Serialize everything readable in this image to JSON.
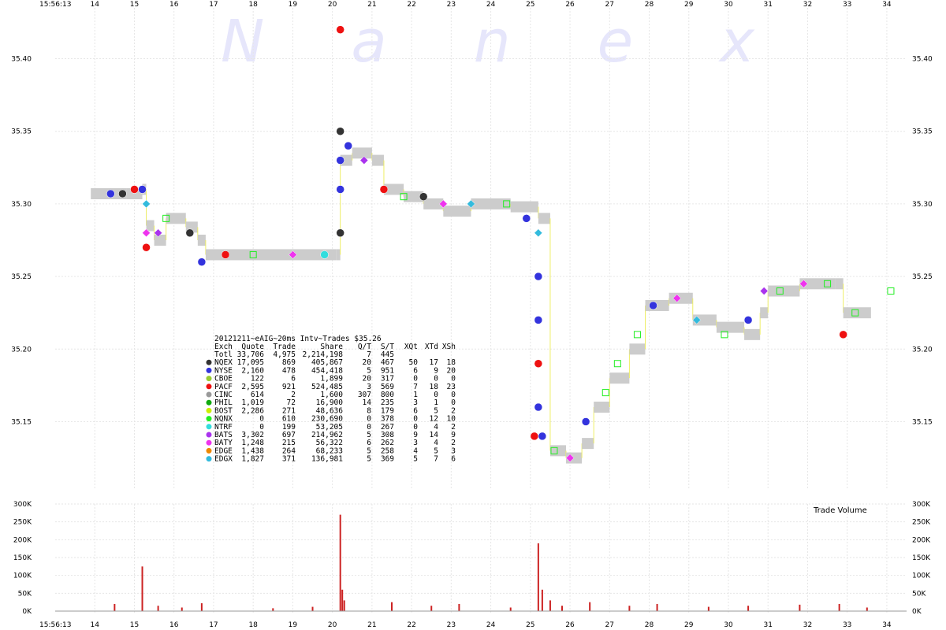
{
  "watermark": "Nanex",
  "time_label": "15:56:13",
  "chart_data": {
    "type": "scatter",
    "x_ticks": [
      "14",
      "15",
      "16",
      "17",
      "18",
      "19",
      "20",
      "21",
      "22",
      "23",
      "24",
      "25",
      "26",
      "27",
      "28",
      "29",
      "30",
      "31",
      "32",
      "33",
      "34"
    ],
    "y_ticks": [
      "35.40",
      "35.35",
      "35.30",
      "35.25",
      "35.20",
      "35.15"
    ],
    "ylim": [
      35.115,
      35.435
    ],
    "xlim": [
      13.0,
      34.3
    ],
    "colors": {
      "NQEX": "#333333",
      "NYSE": "#3333dd",
      "CBOE": "#99cc33",
      "PACF": "#ee1111",
      "CINC": "#999999",
      "PHIL": "#11aa11",
      "BOST": "#ccee00",
      "NQNX": "#22ee22",
      "NTRF": "#33dddd",
      "BATS": "#aa33ee",
      "BATY": "#ee33ee",
      "EDGE": "#ee8800",
      "EDGX": "#33bbdd"
    },
    "nbbo": [
      [
        13.9,
        35.307
      ],
      [
        14.8,
        35.307
      ],
      [
        15.2,
        35.31
      ],
      [
        15.3,
        35.285
      ],
      [
        15.5,
        35.275
      ],
      [
        15.8,
        35.29
      ],
      [
        16.3,
        35.284
      ],
      [
        16.6,
        35.275
      ],
      [
        16.8,
        35.265
      ],
      [
        20.1,
        35.265
      ],
      [
        20.2,
        35.33
      ],
      [
        20.5,
        35.335
      ],
      [
        21.0,
        35.33
      ],
      [
        21.3,
        35.31
      ],
      [
        21.8,
        35.305
      ],
      [
        22.3,
        35.3
      ],
      [
        22.8,
        35.295
      ],
      [
        23.5,
        35.3
      ],
      [
        24.5,
        35.298
      ],
      [
        25.2,
        35.29
      ],
      [
        25.5,
        35.13
      ],
      [
        25.9,
        35.125
      ],
      [
        26.3,
        35.135
      ],
      [
        26.6,
        35.16
      ],
      [
        27.0,
        35.18
      ],
      [
        27.5,
        35.2
      ],
      [
        27.9,
        35.23
      ],
      [
        28.5,
        35.235
      ],
      [
        29.1,
        35.22
      ],
      [
        29.7,
        35.215
      ],
      [
        30.4,
        35.21
      ],
      [
        30.8,
        35.225
      ],
      [
        31.0,
        35.24
      ],
      [
        31.8,
        35.245
      ],
      [
        32.7,
        35.245
      ],
      [
        32.9,
        35.225
      ],
      [
        33.6,
        35.225
      ]
    ],
    "trades": [
      {
        "x": 14.4,
        "y": 35.307,
        "ex": "NYSE"
      },
      {
        "x": 14.7,
        "y": 35.307,
        "ex": "NQEX"
      },
      {
        "x": 15.0,
        "y": 35.31,
        "ex": "PACF"
      },
      {
        "x": 15.2,
        "y": 35.31,
        "ex": "NYSE"
      },
      {
        "x": 15.3,
        "y": 35.3,
        "ex": "EDGX"
      },
      {
        "x": 15.3,
        "y": 35.28,
        "ex": "BATY"
      },
      {
        "x": 15.3,
        "y": 35.27,
        "ex": "PACF"
      },
      {
        "x": 15.6,
        "y": 35.28,
        "ex": "BATS"
      },
      {
        "x": 15.8,
        "y": 35.29,
        "ex": "NQNX"
      },
      {
        "x": 16.4,
        "y": 35.28,
        "ex": "NQEX"
      },
      {
        "x": 16.7,
        "y": 35.26,
        "ex": "NYSE"
      },
      {
        "x": 17.3,
        "y": 35.265,
        "ex": "PACF"
      },
      {
        "x": 18.0,
        "y": 35.265,
        "ex": "NQNX"
      },
      {
        "x": 19.0,
        "y": 35.265,
        "ex": "BATY"
      },
      {
        "x": 19.8,
        "y": 35.265,
        "ex": "NTRF"
      },
      {
        "x": 20.2,
        "y": 35.42,
        "ex": "PACF"
      },
      {
        "x": 20.2,
        "y": 35.35,
        "ex": "NQEX"
      },
      {
        "x": 20.2,
        "y": 35.33,
        "ex": "NYSE"
      },
      {
        "x": 20.2,
        "y": 35.31,
        "ex": "NYSE"
      },
      {
        "x": 20.2,
        "y": 35.28,
        "ex": "NQEX"
      },
      {
        "x": 20.4,
        "y": 35.34,
        "ex": "NYSE"
      },
      {
        "x": 20.8,
        "y": 35.33,
        "ex": "BATS"
      },
      {
        "x": 21.3,
        "y": 35.31,
        "ex": "PACF"
      },
      {
        "x": 21.8,
        "y": 35.305,
        "ex": "NQNX"
      },
      {
        "x": 22.3,
        "y": 35.305,
        "ex": "NQEX"
      },
      {
        "x": 22.8,
        "y": 35.3,
        "ex": "BATY"
      },
      {
        "x": 23.5,
        "y": 35.3,
        "ex": "EDGX"
      },
      {
        "x": 24.4,
        "y": 35.3,
        "ex": "NQNX"
      },
      {
        "x": 24.9,
        "y": 35.29,
        "ex": "NYSE"
      },
      {
        "x": 25.2,
        "y": 35.28,
        "ex": "EDGX"
      },
      {
        "x": 25.2,
        "y": 35.25,
        "ex": "NYSE"
      },
      {
        "x": 25.2,
        "y": 35.22,
        "ex": "NYSE"
      },
      {
        "x": 25.2,
        "y": 35.19,
        "ex": "PACF"
      },
      {
        "x": 25.2,
        "y": 35.16,
        "ex": "NYSE"
      },
      {
        "x": 25.1,
        "y": 35.14,
        "ex": "PACF"
      },
      {
        "x": 25.3,
        "y": 35.14,
        "ex": "NYSE"
      },
      {
        "x": 25.6,
        "y": 35.13,
        "ex": "NQNX"
      },
      {
        "x": 26.0,
        "y": 35.125,
        "ex": "BATY"
      },
      {
        "x": 26.4,
        "y": 35.15,
        "ex": "NYSE"
      },
      {
        "x": 26.9,
        "y": 35.17,
        "ex": "NQNX"
      },
      {
        "x": 27.2,
        "y": 35.19,
        "ex": "NQNX"
      },
      {
        "x": 27.7,
        "y": 35.21,
        "ex": "NQNX"
      },
      {
        "x": 28.1,
        "y": 35.23,
        "ex": "NYSE"
      },
      {
        "x": 28.7,
        "y": 35.235,
        "ex": "BATY"
      },
      {
        "x": 29.2,
        "y": 35.22,
        "ex": "EDGX"
      },
      {
        "x": 29.9,
        "y": 35.21,
        "ex": "NQNX"
      },
      {
        "x": 30.5,
        "y": 35.22,
        "ex": "NYSE"
      },
      {
        "x": 30.9,
        "y": 35.24,
        "ex": "BATS"
      },
      {
        "x": 31.3,
        "y": 35.24,
        "ex": "NQNX"
      },
      {
        "x": 31.9,
        "y": 35.245,
        "ex": "BATY"
      },
      {
        "x": 32.5,
        "y": 35.245,
        "ex": "NQNX"
      },
      {
        "x": 32.9,
        "y": 35.21,
        "ex": "PACF"
      },
      {
        "x": 33.2,
        "y": 35.225,
        "ex": "NQNX"
      },
      {
        "x": 34.1,
        "y": 35.24,
        "ex": "NQNX"
      }
    ],
    "volume": {
      "title": "Trade Volume",
      "y_ticks": [
        "300K",
        "250K",
        "200K",
        "150K",
        "100K",
        "50K",
        "0K"
      ],
      "ylim": [
        0,
        300000
      ],
      "bars": [
        [
          14.5,
          20000
        ],
        [
          15.2,
          125000
        ],
        [
          15.6,
          15000
        ],
        [
          16.2,
          10000
        ],
        [
          16.7,
          22000
        ],
        [
          18.5,
          8000
        ],
        [
          19.5,
          12000
        ],
        [
          20.2,
          270000
        ],
        [
          20.25,
          60000
        ],
        [
          20.3,
          30000
        ],
        [
          21.5,
          25000
        ],
        [
          22.5,
          15000
        ],
        [
          23.2,
          20000
        ],
        [
          24.5,
          10000
        ],
        [
          25.2,
          190000
        ],
        [
          25.3,
          60000
        ],
        [
          25.5,
          30000
        ],
        [
          25.8,
          15000
        ],
        [
          26.5,
          25000
        ],
        [
          27.5,
          15000
        ],
        [
          28.2,
          20000
        ],
        [
          29.5,
          12000
        ],
        [
          30.5,
          15000
        ],
        [
          31.8,
          18000
        ],
        [
          32.8,
          20000
        ],
        [
          33.5,
          10000
        ]
      ]
    },
    "table": {
      "title": "20121211~eAIG~20ms Intv~Trades $35.26",
      "headers": [
        "Exch",
        "Quote",
        "Trade",
        "Share",
        "Q/T",
        "S/T",
        "XQt",
        "XTd",
        "XSh"
      ],
      "rows": [
        [
          "Totl",
          "33,706",
          "4,975",
          "2,214,198",
          "7",
          "445",
          "",
          "",
          ""
        ],
        [
          "NQEX",
          "17,095",
          "869",
          "405,867",
          "20",
          "467",
          "50",
          "17",
          "18"
        ],
        [
          "NYSE",
          "2,160",
          "478",
          "454,418",
          "5",
          "951",
          "6",
          "9",
          "20"
        ],
        [
          "CBOE",
          "122",
          "6",
          "1,899",
          "20",
          "317",
          "0",
          "0",
          "0"
        ],
        [
          "PACF",
          "2,595",
          "921",
          "524,485",
          "3",
          "569",
          "7",
          "18",
          "23"
        ],
        [
          "CINC",
          "614",
          "2",
          "1,600",
          "307",
          "800",
          "1",
          "0",
          "0"
        ],
        [
          "PHIL",
          "1,019",
          "72",
          "16,900",
          "14",
          "235",
          "3",
          "1",
          "0"
        ],
        [
          "BOST",
          "2,286",
          "271",
          "48,636",
          "8",
          "179",
          "6",
          "5",
          "2"
        ],
        [
          "NQNX",
          "0",
          "610",
          "230,690",
          "0",
          "378",
          "0",
          "12",
          "10"
        ],
        [
          "NTRF",
          "0",
          "199",
          "53,205",
          "0",
          "267",
          "0",
          "4",
          "2"
        ],
        [
          "BATS",
          "3,302",
          "697",
          "214,962",
          "5",
          "308",
          "9",
          "14",
          "9"
        ],
        [
          "BATY",
          "1,248",
          "215",
          "56,322",
          "6",
          "262",
          "3",
          "4",
          "2"
        ],
        [
          "EDGE",
          "1,438",
          "264",
          "68,233",
          "5",
          "258",
          "4",
          "5",
          "3"
        ],
        [
          "EDGX",
          "1,827",
          "371",
          "136,981",
          "5",
          "369",
          "5",
          "7",
          "6"
        ]
      ]
    }
  }
}
